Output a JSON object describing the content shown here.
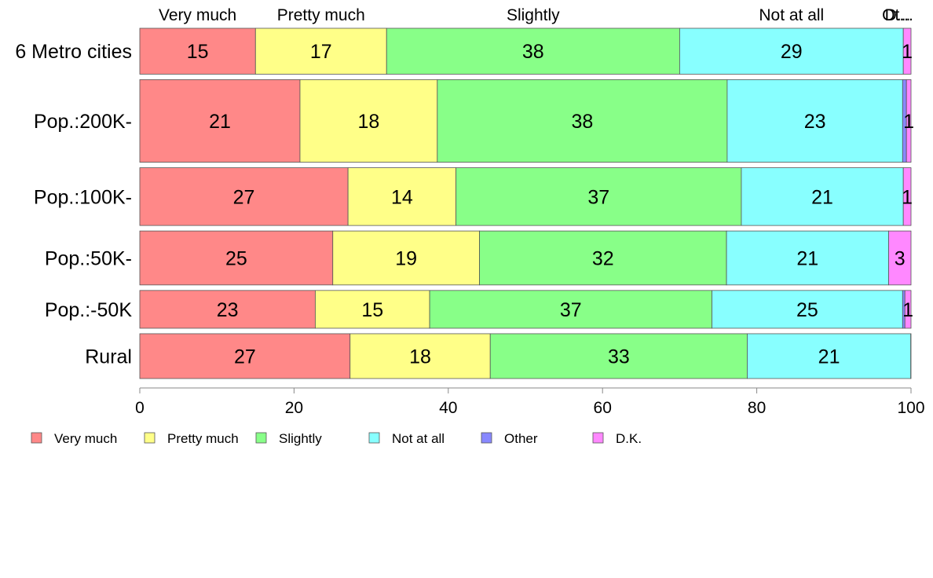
{
  "chart_data": {
    "type": "bar",
    "orientation": "horizontal",
    "stacked": true,
    "categories": [
      "6 Metro cities",
      "Pop.:200K-",
      "Pop.:100K-",
      "Pop.:50K-",
      "Pop.:-50K",
      "Rural"
    ],
    "category_weights": [
      0.85,
      1.53,
      1.07,
      1.0,
      0.7,
      0.83
    ],
    "series": [
      {
        "name": "Very much",
        "color": "#ff8888",
        "values": [
          15,
          21,
          27,
          25,
          23,
          27
        ],
        "labels": [
          "15",
          "21",
          "27",
          "25",
          "23",
          "27"
        ]
      },
      {
        "name": "Pretty much",
        "color": "#ffff88",
        "values": [
          17,
          18,
          14,
          19,
          15,
          18
        ],
        "labels": [
          "17",
          "18",
          "14",
          "19",
          "15",
          "18"
        ]
      },
      {
        "name": "Slightly",
        "color": "#88ff88",
        "values": [
          38,
          38,
          37,
          32,
          37,
          33
        ],
        "labels": [
          "38",
          "38",
          "37",
          "32",
          "37",
          "33"
        ]
      },
      {
        "name": "Not at all",
        "color": "#88ffff",
        "values": [
          29,
          23,
          21,
          21,
          25,
          21
        ],
        "labels": [
          "29",
          "23",
          "21",
          "21",
          "25",
          "21"
        ]
      },
      {
        "name": "Other",
        "color": "#8888ff",
        "values": [
          0,
          0.5,
          0,
          0,
          0.3,
          0
        ],
        "labels": [
          "",
          "",
          "",
          "",
          "",
          ""
        ]
      },
      {
        "name": "D.K.",
        "color": "#ff88ff",
        "values": [
          1,
          0.6,
          1,
          2.9,
          0.8,
          0.03
        ],
        "labels": [
          "1",
          "1",
          "1",
          "3",
          "1",
          ""
        ]
      }
    ],
    "top_labels": [
      "Very much",
      "Pretty much",
      "Slightly",
      "Not at all",
      "Ot...",
      "D..."
    ],
    "xlim": [
      0,
      100
    ],
    "xticks": [
      "0",
      "20",
      "40",
      "60",
      "80",
      "100"
    ],
    "grid": false,
    "legend": "bottom"
  }
}
